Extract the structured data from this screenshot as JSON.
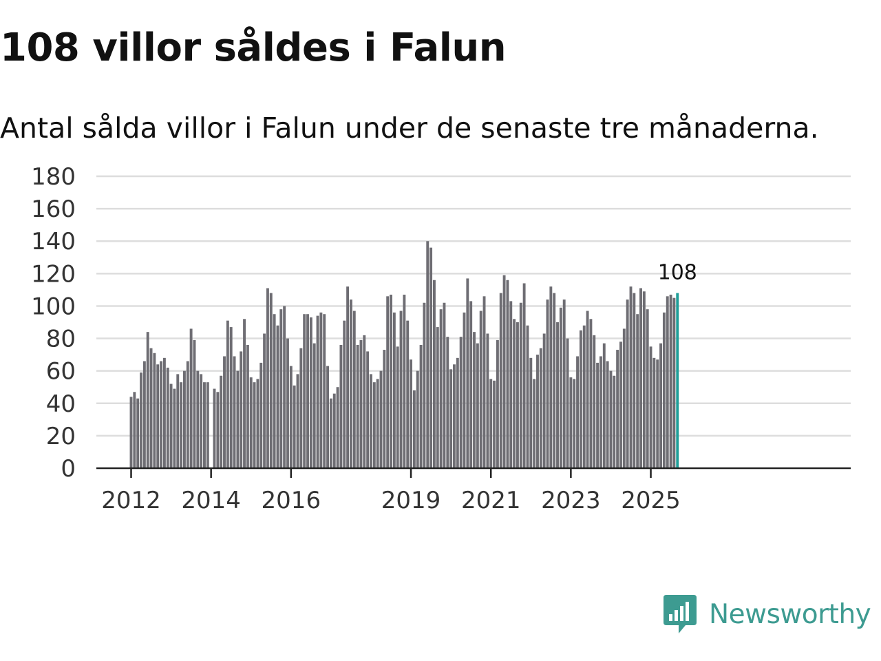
{
  "chart_data": {
    "type": "bar",
    "title": "108 villor såldes i Falun",
    "subtitle": "Antal sålda villor i Falun under de senaste tre månaderna.",
    "xlabel": "",
    "ylabel": "",
    "ylim": [
      0,
      180
    ],
    "yticks": [
      0,
      20,
      40,
      60,
      80,
      100,
      120,
      140,
      160,
      180
    ],
    "x_tick_labels": [
      "2012",
      "2014",
      "2016",
      "2019",
      "2021",
      "2023",
      "2025"
    ],
    "start": "2012-01",
    "series": [
      {
        "name": "Antal sålda villor",
        "values": [
          44,
          47,
          43,
          59,
          66,
          84,
          74,
          71,
          64,
          66,
          68,
          62,
          52,
          49,
          58,
          53,
          60,
          66,
          86,
          79,
          60,
          58,
          53,
          53,
          0,
          49,
          47,
          57,
          69,
          91,
          87,
          69,
          60,
          72,
          92,
          76,
          56,
          53,
          55,
          65,
          83,
          111,
          108,
          95,
          88,
          98,
          100,
          80,
          63,
          51,
          58,
          74,
          95,
          95,
          93,
          77,
          94,
          96,
          95,
          63,
          43,
          46,
          50,
          76,
          91,
          112,
          104,
          97,
          76,
          79,
          82,
          72,
          58,
          53,
          55,
          60,
          73,
          106,
          107,
          96,
          75,
          97,
          107,
          91,
          67,
          48,
          60,
          76,
          102,
          140,
          136,
          116,
          87,
          98,
          102,
          81,
          61,
          64,
          68,
          81,
          96,
          117,
          103,
          84,
          77,
          97,
          106,
          83,
          55,
          54,
          79,
          108,
          119,
          116,
          103,
          92,
          90,
          102,
          114,
          88,
          68,
          55,
          70,
          74,
          83,
          104,
          112,
          108,
          90,
          99,
          104,
          80,
          56,
          55,
          69,
          85,
          88,
          97,
          92,
          82,
          65,
          69,
          77,
          66,
          60,
          57,
          73,
          78,
          86,
          104,
          112,
          108,
          95,
          111,
          109,
          98,
          75,
          68,
          67,
          77,
          96,
          106,
          107,
          105,
          108
        ]
      }
    ],
    "highlight": {
      "label": "108",
      "value": 108
    },
    "colors": {
      "bar": "#6e6d73",
      "highlight": "#1f9e98",
      "grid": "#dddddd",
      "axis": "#222222"
    },
    "grid": true,
    "legend": "none"
  },
  "brand": {
    "name": "Newsworthy",
    "color": "#3d9b91"
  }
}
